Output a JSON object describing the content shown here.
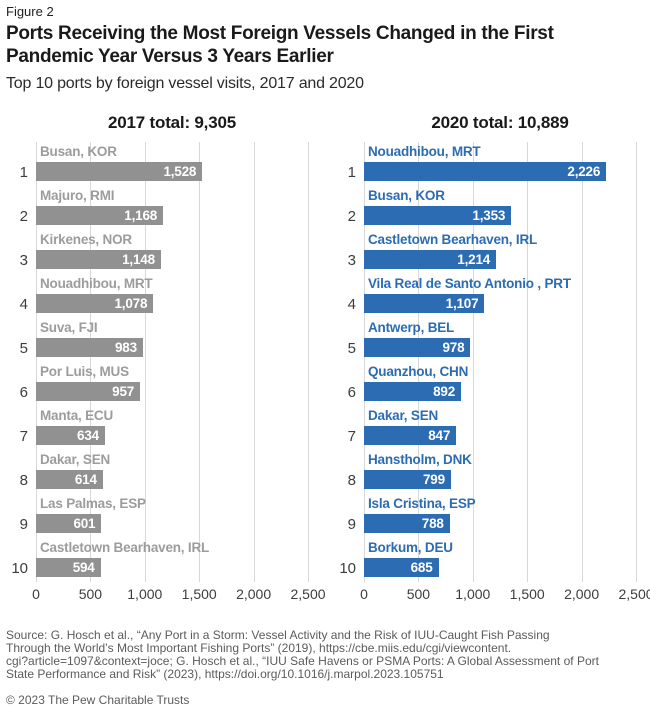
{
  "figure_label": "Figure 2",
  "title": "Ports Receiving the Most Foreign Vessels Changed in the First Pandemic Year Versus 3 Years Earlier",
  "title_lines": [
    "Ports Receiving the Most Foreign Vessels Changed in the First",
    "Pandemic Year Versus 3 Years Earlier"
  ],
  "subtitle": "Top 10 ports by foreign vessel visits, 2017 and 2020",
  "colors": {
    "bar_2017": "#919191",
    "label_2017": "#9c9c9c",
    "bar_2020": "#2b6cb3",
    "label_2020": "#2b6cb3",
    "gridline": "#d8d8d8",
    "value_text": "#ffffff",
    "rank_text": "#3d3d3d",
    "footer_text": "#5b5b5b"
  },
  "chart_data": [
    {
      "type": "bar",
      "orientation": "horizontal",
      "title": "2017 total: 9,305",
      "total": 9305,
      "xlim": [
        0,
        2500
      ],
      "x_ticks": [
        "0",
        "500",
        "1,000",
        "1,500",
        "2,000",
        "2,500"
      ],
      "grid": true,
      "bar_color": "#919191",
      "label_color": "#9c9c9c",
      "rows": [
        {
          "rank": "1",
          "label": "Busan, KOR",
          "value": 1528,
          "display": "1,528"
        },
        {
          "rank": "2",
          "label": "Majuro, RMI",
          "value": 1168,
          "display": "1,168"
        },
        {
          "rank": "3",
          "label": "Kirkenes, NOR",
          "value": 1148,
          "display": "1,148"
        },
        {
          "rank": "4",
          "label": "Nouadhibou, MRT",
          "value": 1078,
          "display": "1,078"
        },
        {
          "rank": "5",
          "label": "Suva, FJI",
          "value": 983,
          "display": "983"
        },
        {
          "rank": "6",
          "label": "Por Luis, MUS",
          "value": 957,
          "display": "957"
        },
        {
          "rank": "7",
          "label": "Manta, ECU",
          "value": 634,
          "display": "634"
        },
        {
          "rank": "8",
          "label": "Dakar, SEN",
          "value": 614,
          "display": "614"
        },
        {
          "rank": "9",
          "label": "Las Palmas, ESP",
          "value": 601,
          "display": "601"
        },
        {
          "rank": "10",
          "label": "Castletown Bearhaven, IRL",
          "value": 594,
          "display": "594"
        }
      ]
    },
    {
      "type": "bar",
      "orientation": "horizontal",
      "title": "2020 total: 10,889",
      "total": 10889,
      "xlim": [
        0,
        2500
      ],
      "x_ticks": [
        "0",
        "500",
        "1,000",
        "1,500",
        "2,000",
        "2,500"
      ],
      "grid": true,
      "bar_color": "#2b6cb3",
      "label_color": "#2b6cb3",
      "rows": [
        {
          "rank": "1",
          "label": "Nouadhibou, MRT",
          "value": 2226,
          "display": "2,226"
        },
        {
          "rank": "2",
          "label": "Busan, KOR",
          "value": 1353,
          "display": "1,353"
        },
        {
          "rank": "3",
          "label": "Castletown Bearhaven, IRL",
          "value": 1214,
          "display": "1,214"
        },
        {
          "rank": "4",
          "label": "Vila Real de Santo Antonio , PRT",
          "value": 1107,
          "display": "1,107"
        },
        {
          "rank": "5",
          "label": "Antwerp, BEL",
          "value": 978,
          "display": "978"
        },
        {
          "rank": "6",
          "label": "Quanzhou, CHN",
          "value": 892,
          "display": "892"
        },
        {
          "rank": "7",
          "label": "Dakar, SEN",
          "value": 847,
          "display": "847"
        },
        {
          "rank": "8",
          "label": "Hanstholm, DNK",
          "value": 799,
          "display": "799"
        },
        {
          "rank": "9",
          "label": "Isla Cristina, ESP",
          "value": 788,
          "display": "788"
        },
        {
          "rank": "10",
          "label": "Borkum, DEU",
          "value": 685,
          "display": "685"
        }
      ]
    }
  ],
  "source_lines": [
    "Source: G. Hosch et al., “Any Port in a Storm: Vessel Activity and the Risk of IUU-Caught Fish Passing",
    "Through the World’s Most Important Fishing Ports” (2019), https://cbe.miis.edu/cgi/viewcontent.",
    "cgi?article=1097&context=joce; G. Hosch et al., “IUU Safe Havens or PSMA Ports: A Global Assessment of Port",
    "State Performance and Risk” (2023), https://doi.org/10.1016/j.marpol.2023.105751"
  ],
  "copyright": "© 2023 The Pew Charitable Trusts"
}
